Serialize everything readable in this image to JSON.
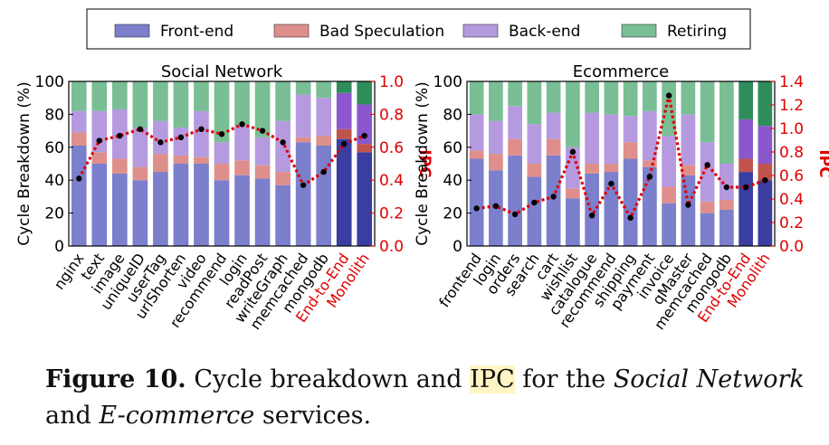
{
  "legend": {
    "items": [
      {
        "label": "Front-end",
        "color": "#7b7fcc"
      },
      {
        "label": "Bad Speculation",
        "color": "#de8f8b"
      },
      {
        "label": "Back-end",
        "color": "#b69ae0"
      },
      {
        "label": "Retiring",
        "color": "#79be95"
      }
    ]
  },
  "colors": {
    "ipc_line": "#e00000",
    "highlight_label": "#e00000",
    "dark_front": "#393ea0",
    "dark_bad": "#c0534c",
    "dark_back": "#8a58cc",
    "dark_retire": "#2f8d5c"
  },
  "caption": {
    "label": "Figure 10.",
    "text_1": "Cycle breakdown and",
    "ipc": "IPC",
    "text_2": "for the",
    "service_1": "Social Network",
    "text_3": "and",
    "service_2": "E-commerce",
    "text_4": "services."
  },
  "chart_data": [
    {
      "type": "bar",
      "stacked": true,
      "title": "Social Network",
      "ylabel": "Cycle Breakdown (%)",
      "ylabel_right": "IPC",
      "ylim": [
        0,
        100
      ],
      "yticks": [
        0,
        20,
        40,
        60,
        80,
        100
      ],
      "ylim_right": [
        0,
        1.0
      ],
      "yticks_right": [
        "0.0",
        "0.2",
        "0.4",
        "0.6",
        "0.8",
        "1.0"
      ],
      "categories": [
        "nginx",
        "text",
        "image",
        "uniqueID",
        "userTag",
        "urlShorten",
        "video",
        "recommend",
        "login",
        "readPost",
        "writeGraph",
        "memcached",
        "mongodb",
        "End-to-End",
        "Monolith"
      ],
      "highlight_categories": [
        "End-to-End",
        "Monolith"
      ],
      "series": [
        {
          "name": "Front-end",
          "values": [
            61,
            50,
            44,
            40,
            45,
            50,
            50,
            40,
            43,
            41,
            37,
            63,
            61,
            65,
            57
          ]
        },
        {
          "name": "Bad Speculation",
          "values": [
            8,
            7,
            9,
            8,
            11,
            5,
            4,
            10,
            9,
            8,
            8,
            3,
            6,
            6,
            5
          ]
        },
        {
          "name": "Back-end",
          "values": [
            13,
            25,
            30,
            24,
            20,
            17,
            28,
            13,
            21,
            17,
            31,
            26,
            23,
            22,
            24
          ]
        },
        {
          "name": "Retiring",
          "values": [
            18,
            18,
            17,
            28,
            24,
            28,
            18,
            37,
            27,
            34,
            24,
            8,
            10,
            7,
            14
          ]
        }
      ],
      "ipc": [
        0.41,
        0.64,
        0.67,
        0.71,
        0.63,
        0.66,
        0.71,
        0.68,
        0.74,
        0.7,
        0.63,
        0.37,
        0.45,
        0.62,
        0.67
      ]
    },
    {
      "type": "bar",
      "stacked": true,
      "title": "Ecommerce",
      "ylabel": "Cycle Breakdown (%)",
      "ylabel_right": "IPC",
      "ylim": [
        0,
        100
      ],
      "yticks": [
        0,
        20,
        40,
        60,
        80,
        100
      ],
      "ylim_right": [
        0,
        1.4
      ],
      "yticks_right": [
        "0.0",
        "0.2",
        "0.4",
        "0.6",
        "0.8",
        "1.0",
        "1.2",
        "1.4"
      ],
      "categories": [
        "frontend",
        "login",
        "orders",
        "search",
        "cart",
        "wishlist",
        "catalogue",
        "recommend",
        "shipping",
        "payment",
        "invoice",
        "qMaster",
        "memcached",
        "mongodb",
        "End-to-End",
        "Monolith"
      ],
      "highlight_categories": [
        "End-to-End",
        "Monolith"
      ],
      "series": [
        {
          "name": "Front-end",
          "values": [
            53,
            46,
            55,
            42,
            55,
            29,
            44,
            45,
            53,
            48,
            26,
            43,
            20,
            22,
            45,
            40
          ]
        },
        {
          "name": "Bad Speculation",
          "values": [
            5,
            10,
            10,
            8,
            10,
            6,
            6,
            5,
            10,
            4,
            10,
            6,
            7,
            6,
            8,
            10
          ]
        },
        {
          "name": "Back-end",
          "values": [
            22,
            20,
            20,
            24,
            16,
            25,
            31,
            30,
            16,
            30,
            31,
            31,
            36,
            22,
            24,
            23
          ]
        },
        {
          "name": "Retiring",
          "values": [
            20,
            24,
            15,
            26,
            19,
            40,
            19,
            20,
            21,
            18,
            33,
            20,
            37,
            50,
            23,
            27
          ]
        }
      ],
      "ipc": [
        0.32,
        0.34,
        0.27,
        0.37,
        0.42,
        0.8,
        0.26,
        0.53,
        0.24,
        0.59,
        1.28,
        0.35,
        0.69,
        0.5,
        0.5,
        0.56
      ]
    }
  ]
}
